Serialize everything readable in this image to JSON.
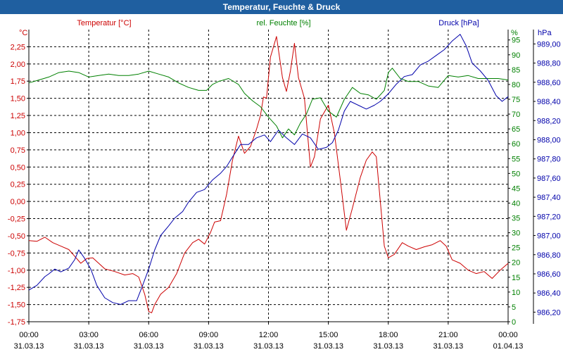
{
  "chart_data": {
    "type": "line",
    "title": "Temperatur, Feuchte & Druck",
    "colors": {
      "temperature": "#cc0000",
      "humidity": "#008000",
      "pressure": "#0000aa",
      "axis": "#000000",
      "grid": "#000000",
      "title_bar": "#1f5fa0"
    },
    "x_ticks": [
      {
        "time": "00:00",
        "date": "31.03.13"
      },
      {
        "time": "03:00",
        "date": "31.03.13"
      },
      {
        "time": "06:00",
        "date": "31.03.13"
      },
      {
        "time": "09:00",
        "date": "31.03.13"
      },
      {
        "time": "12:00",
        "date": "31.03.13"
      },
      {
        "time": "15:00",
        "date": "31.03.13"
      },
      {
        "time": "18:00",
        "date": "31.03.13"
      },
      {
        "time": "21:00",
        "date": "31.03.13"
      },
      {
        "time": "00:00",
        "date": "01.04.13"
      }
    ],
    "xlim_hours": [
      0,
      24
    ],
    "axes": {
      "temperature": {
        "label": "Temperatur [°C]",
        "unit": "°C",
        "min": -1.75,
        "max": 2.5,
        "ticks": [
          "-1,75",
          "-1,50",
          "-1,25",
          "-1,00",
          "-0,75",
          "-0,50",
          "-0,25",
          "0,00",
          "0,25",
          "0,50",
          "0,75",
          "1,00",
          "1,25",
          "1,50",
          "1,75",
          "2,00",
          "2,25"
        ]
      },
      "humidity": {
        "label": "rel. Feuchte [%]",
        "unit": "%",
        "min": 0,
        "max": 98.5,
        "ticks": [
          "0",
          "5",
          "10",
          "15",
          "20",
          "25",
          "30",
          "35",
          "40",
          "45",
          "50",
          "55",
          "60",
          "65",
          "70",
          "75",
          "80",
          "85",
          "90",
          "95"
        ]
      },
      "pressure": {
        "label": "Druck [hPa]",
        "unit": "hPa",
        "min": 986.1,
        "max": 989.15,
        "ticks": [
          "986,20",
          "986,40",
          "986,60",
          "986,80",
          "987,00",
          "987,20",
          "987,40",
          "987,60",
          "987,80",
          "988,00",
          "988,20",
          "988,40",
          "988,60",
          "988,80",
          "989,00"
        ]
      }
    },
    "series": [
      {
        "name": "Temperatur",
        "key": "temperature",
        "axis": "temperature",
        "points": [
          [
            0,
            -0.57
          ],
          [
            0.4,
            -0.58
          ],
          [
            0.8,
            -0.52
          ],
          [
            1.2,
            -0.6
          ],
          [
            1.6,
            -0.65
          ],
          [
            2.0,
            -0.7
          ],
          [
            2.3,
            -0.8
          ],
          [
            2.6,
            -0.9
          ],
          [
            2.9,
            -0.83
          ],
          [
            3.2,
            -0.82
          ],
          [
            3.5,
            -0.9
          ],
          [
            3.8,
            -0.98
          ],
          [
            4.3,
            -1.02
          ],
          [
            4.8,
            -1.07
          ],
          [
            5.2,
            -1.05
          ],
          [
            5.5,
            -1.1
          ],
          [
            5.8,
            -1.35
          ],
          [
            6.0,
            -1.6
          ],
          [
            6.15,
            -1.62
          ],
          [
            6.3,
            -1.5
          ],
          [
            6.6,
            -1.35
          ],
          [
            7.0,
            -1.25
          ],
          [
            7.4,
            -1.05
          ],
          [
            7.8,
            -0.75
          ],
          [
            8.2,
            -0.6
          ],
          [
            8.5,
            -0.55
          ],
          [
            8.8,
            -0.62
          ],
          [
            9.1,
            -0.45
          ],
          [
            9.3,
            -0.3
          ],
          [
            9.6,
            -0.28
          ],
          [
            9.9,
            0.1
          ],
          [
            10.2,
            0.6
          ],
          [
            10.5,
            0.95
          ],
          [
            10.8,
            0.7
          ],
          [
            11.1,
            0.8
          ],
          [
            11.4,
            1.05
          ],
          [
            11.6,
            1.25
          ],
          [
            11.75,
            1.52
          ],
          [
            11.9,
            1.5
          ],
          [
            12.1,
            2.1
          ],
          [
            12.4,
            2.4
          ],
          [
            12.7,
            1.8
          ],
          [
            12.9,
            1.6
          ],
          [
            13.1,
            1.9
          ],
          [
            13.3,
            2.3
          ],
          [
            13.5,
            1.8
          ],
          [
            13.8,
            1.5
          ],
          [
            14.1,
            0.5
          ],
          [
            14.3,
            0.65
          ],
          [
            14.6,
            1.2
          ],
          [
            15.0,
            1.4
          ],
          [
            15.3,
            1.0
          ],
          [
            15.6,
            0.3
          ],
          [
            15.9,
            -0.42
          ],
          [
            16.2,
            -0.1
          ],
          [
            16.6,
            0.35
          ],
          [
            16.9,
            0.6
          ],
          [
            17.2,
            0.72
          ],
          [
            17.4,
            0.65
          ],
          [
            17.6,
            0.0
          ],
          [
            17.8,
            -0.65
          ],
          [
            18.0,
            -0.82
          ],
          [
            18.3,
            -0.77
          ],
          [
            18.7,
            -0.6
          ],
          [
            19.0,
            -0.65
          ],
          [
            19.4,
            -0.7
          ],
          [
            19.8,
            -0.66
          ],
          [
            20.2,
            -0.63
          ],
          [
            20.6,
            -0.57
          ],
          [
            20.9,
            -0.65
          ],
          [
            21.2,
            -0.85
          ],
          [
            21.6,
            -0.9
          ],
          [
            22.0,
            -1.0
          ],
          [
            22.4,
            -1.05
          ],
          [
            22.8,
            -1.02
          ],
          [
            23.2,
            -1.12
          ],
          [
            23.6,
            -1.0
          ],
          [
            24.0,
            -0.9
          ]
        ]
      },
      {
        "name": "rel. Feuchte",
        "key": "humidity",
        "axis": "humidity",
        "points": [
          [
            0,
            80.5
          ],
          [
            0.5,
            81.5
          ],
          [
            1.0,
            82.5
          ],
          [
            1.5,
            84.0
          ],
          [
            2.0,
            84.5
          ],
          [
            2.5,
            84.0
          ],
          [
            3.0,
            82.5
          ],
          [
            3.5,
            83.0
          ],
          [
            4.0,
            83.5
          ],
          [
            4.5,
            83.0
          ],
          [
            5.0,
            83.0
          ],
          [
            5.5,
            83.5
          ],
          [
            6.0,
            84.5
          ],
          [
            6.5,
            83.5
          ],
          [
            7.0,
            82.5
          ],
          [
            7.5,
            80.5
          ],
          [
            8.0,
            79.0
          ],
          [
            8.5,
            78.0
          ],
          [
            8.9,
            78.0
          ],
          [
            9.2,
            80.0
          ],
          [
            9.5,
            81.0
          ],
          [
            10.0,
            82.0
          ],
          [
            10.5,
            80.0
          ],
          [
            10.8,
            77.0
          ],
          [
            11.2,
            74.5
          ],
          [
            11.6,
            72.5
          ],
          [
            12.0,
            69.0
          ],
          [
            12.4,
            66.0
          ],
          [
            12.7,
            62.0
          ],
          [
            13.0,
            65.0
          ],
          [
            13.3,
            63.0
          ],
          [
            13.6,
            67.0
          ],
          [
            13.9,
            70.0
          ],
          [
            14.2,
            75.0
          ],
          [
            14.6,
            75.5
          ],
          [
            15.0,
            71.0
          ],
          [
            15.4,
            69.0
          ],
          [
            15.8,
            75.0
          ],
          [
            16.2,
            79.0
          ],
          [
            16.6,
            77.0
          ],
          [
            17.0,
            76.5
          ],
          [
            17.4,
            75.0
          ],
          [
            17.8,
            78.0
          ],
          [
            18.0,
            84.0
          ],
          [
            18.2,
            85.5
          ],
          [
            18.6,
            82.0
          ],
          [
            19.0,
            81.0
          ],
          [
            19.5,
            81.0
          ],
          [
            20.0,
            79.5
          ],
          [
            20.5,
            79.0
          ],
          [
            21.0,
            83.0
          ],
          [
            21.5,
            82.5
          ],
          [
            22.0,
            83.0
          ],
          [
            22.5,
            82.0
          ],
          [
            23.0,
            82.0
          ],
          [
            23.5,
            82.0
          ],
          [
            24.0,
            81.5
          ]
        ]
      },
      {
        "name": "Druck",
        "key": "pressure",
        "axis": "pressure",
        "points": [
          [
            0,
            986.43
          ],
          [
            0.4,
            986.48
          ],
          [
            0.8,
            986.57
          ],
          [
            1.0,
            986.6
          ],
          [
            1.3,
            986.65
          ],
          [
            1.6,
            986.62
          ],
          [
            2.0,
            986.66
          ],
          [
            2.3,
            986.75
          ],
          [
            2.5,
            986.85
          ],
          [
            2.8,
            986.76
          ],
          [
            3.1,
            986.65
          ],
          [
            3.4,
            986.48
          ],
          [
            3.8,
            986.35
          ],
          [
            4.2,
            986.3
          ],
          [
            4.6,
            986.28
          ],
          [
            5.0,
            986.32
          ],
          [
            5.4,
            986.32
          ],
          [
            5.7,
            986.48
          ],
          [
            6.0,
            986.65
          ],
          [
            6.3,
            986.85
          ],
          [
            6.6,
            987.0
          ],
          [
            7.0,
            987.1
          ],
          [
            7.3,
            987.18
          ],
          [
            7.7,
            987.25
          ],
          [
            8.0,
            987.35
          ],
          [
            8.4,
            987.45
          ],
          [
            8.8,
            987.48
          ],
          [
            9.2,
            987.58
          ],
          [
            9.6,
            987.65
          ],
          [
            9.9,
            987.72
          ],
          [
            10.2,
            987.82
          ],
          [
            10.6,
            987.95
          ],
          [
            11.0,
            987.95
          ],
          [
            11.4,
            988.02
          ],
          [
            11.8,
            988.05
          ],
          [
            12.1,
            987.98
          ],
          [
            12.5,
            988.1
          ],
          [
            12.9,
            988.02
          ],
          [
            13.3,
            987.95
          ],
          [
            13.7,
            988.06
          ],
          [
            14.1,
            988.02
          ],
          [
            14.5,
            987.9
          ],
          [
            14.9,
            987.92
          ],
          [
            15.2,
            987.97
          ],
          [
            15.5,
            988.1
          ],
          [
            15.8,
            988.3
          ],
          [
            16.1,
            988.4
          ],
          [
            16.5,
            988.36
          ],
          [
            16.9,
            988.32
          ],
          [
            17.3,
            988.36
          ],
          [
            17.6,
            988.4
          ],
          [
            18.0,
            988.48
          ],
          [
            18.4,
            988.58
          ],
          [
            18.8,
            988.66
          ],
          [
            19.2,
            988.68
          ],
          [
            19.6,
            988.78
          ],
          [
            20.0,
            988.82
          ],
          [
            20.4,
            988.88
          ],
          [
            20.8,
            988.94
          ],
          [
            21.2,
            989.03
          ],
          [
            21.6,
            989.1
          ],
          [
            21.9,
            988.98
          ],
          [
            22.2,
            988.8
          ],
          [
            22.6,
            988.72
          ],
          [
            23.0,
            988.62
          ],
          [
            23.4,
            988.46
          ],
          [
            23.7,
            988.4
          ],
          [
            24.0,
            988.45
          ]
        ]
      }
    ]
  }
}
